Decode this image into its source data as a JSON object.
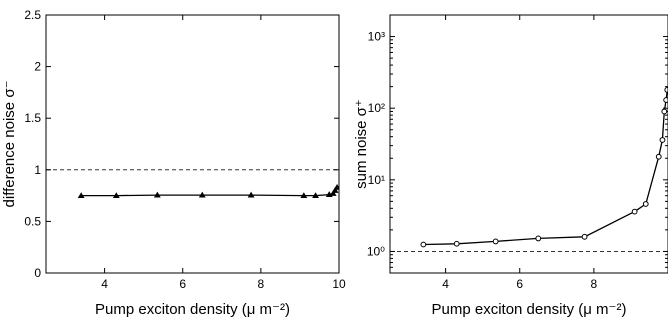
{
  "chart_data": [
    {
      "type": "line",
      "xlabel": "Pump exciton density (μ m⁻²)",
      "ylabel": "difference noise σ⁻",
      "xlim": [
        2.5,
        10
      ],
      "ylim": [
        0,
        2.5
      ],
      "xticks": [
        "4",
        "6",
        "8",
        "10"
      ],
      "xtick_values": [
        4,
        6,
        8,
        10
      ],
      "yticks": [
        "0",
        "0.5",
        "1",
        "1.5",
        "2",
        "2.5"
      ],
      "ytick_values": [
        0,
        0.5,
        1,
        1.5,
        2,
        2.5
      ],
      "y_scale": "linear",
      "reference_line": 1,
      "marker": "triangle",
      "series": [
        {
          "x": [
            3.4,
            4.3,
            5.35,
            6.5,
            7.75,
            9.1,
            9.4,
            9.75,
            9.85,
            9.9,
            9.95
          ],
          "y": [
            0.75,
            0.75,
            0.755,
            0.755,
            0.755,
            0.75,
            0.75,
            0.76,
            0.77,
            0.8,
            0.83
          ]
        }
      ]
    },
    {
      "type": "line",
      "xlabel": "Pump exciton density (μ m⁻²)",
      "ylabel": "sum noise σ⁺",
      "xlim": [
        2.5,
        10
      ],
      "ylim": [
        0.5,
        2000
      ],
      "xticks": [
        "4",
        "6",
        "8"
      ],
      "xtick_values": [
        4,
        6,
        8
      ],
      "yticks": [
        "10⁰",
        "10¹",
        "10²",
        "10³"
      ],
      "ytick_values": [
        1,
        10,
        100,
        1000
      ],
      "y_scale": "log",
      "reference_line": 1,
      "marker": "circle",
      "series": [
        {
          "x": [
            3.4,
            4.3,
            5.35,
            6.5,
            7.75,
            9.1,
            9.4,
            9.75,
            9.85,
            9.9,
            9.95,
            9.98
          ],
          "y": [
            1.25,
            1.28,
            1.38,
            1.52,
            1.6,
            3.6,
            4.6,
            21,
            36,
            90,
            130,
            180
          ]
        }
      ]
    }
  ]
}
